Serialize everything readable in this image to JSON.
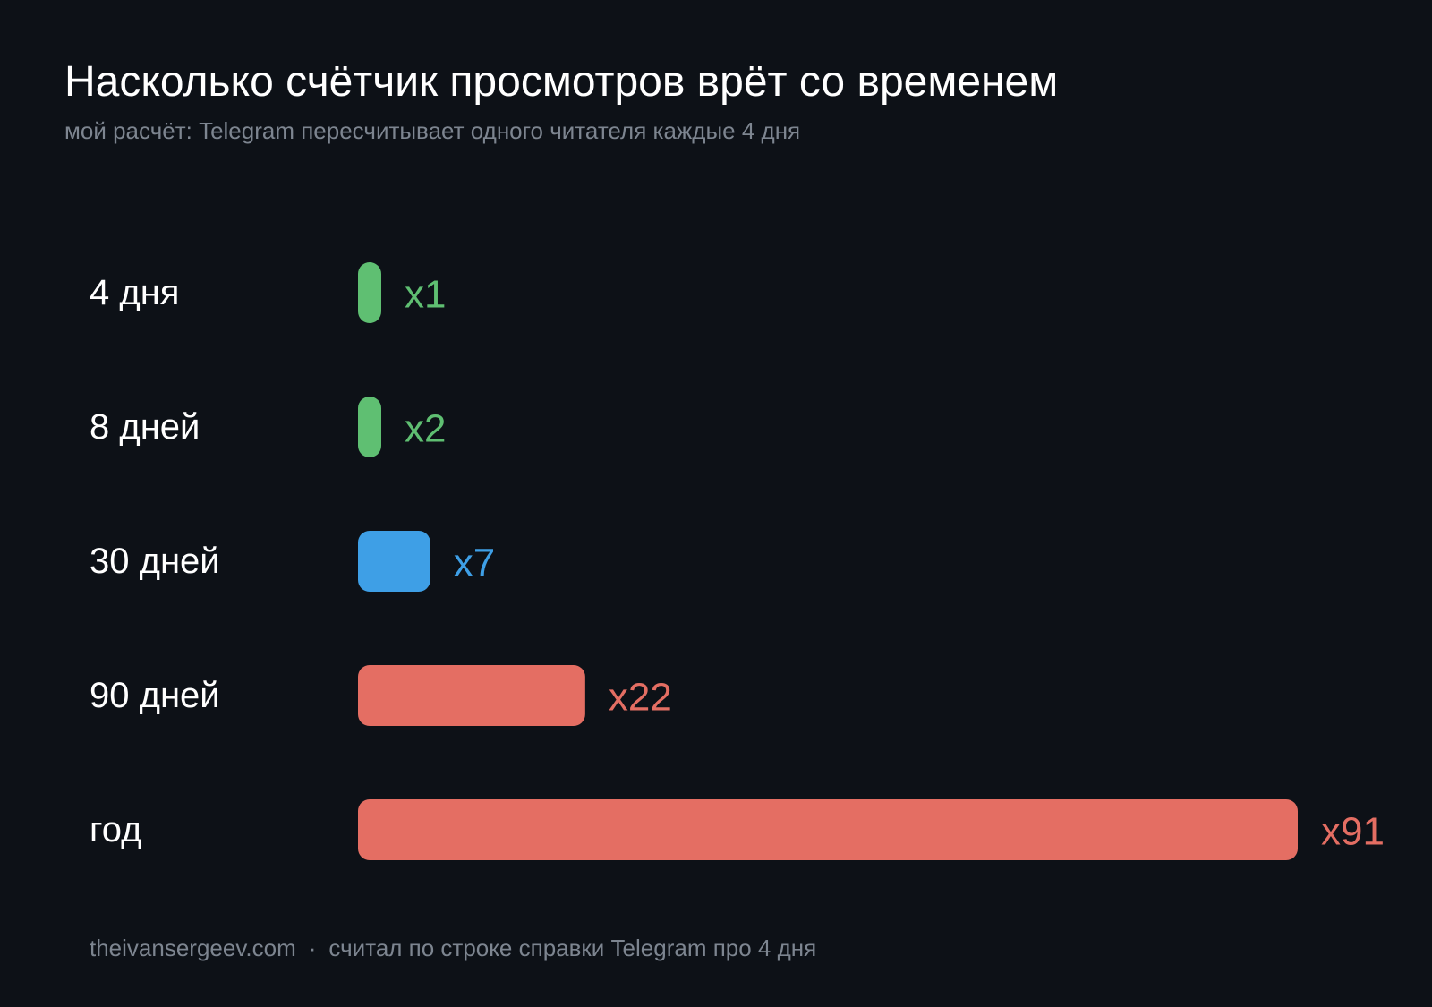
{
  "title": "Насколько счётчик просмотров врёт со временем",
  "subtitle": "мой расчёт: Telegram пересчитывает одного читателя каждые 4 дня",
  "colors": {
    "background": "#0d1117",
    "green": "#5fbf72",
    "blue": "#3e9fe6",
    "red": "#e46e63",
    "muted": "#7d8590",
    "text": "#ffffff"
  },
  "chart_data": {
    "type": "bar",
    "orientation": "horizontal",
    "categories": [
      "4 дня",
      "8 дней",
      "30 дней",
      "90 дней",
      "год"
    ],
    "values": [
      1,
      2,
      7,
      22,
      91
    ],
    "value_labels": [
      "x1",
      "x2",
      "x7",
      "x22",
      "x91"
    ],
    "bar_colors": [
      "#5fbf72",
      "#5fbf72",
      "#3e9fe6",
      "#e46e63",
      "#e46e63"
    ],
    "title": "Насколько счётчик просмотров врёт со временем",
    "subtitle": "мой расчёт: Telegram пересчитывает одного читателя каждые 4 дня",
    "xlabel": "",
    "ylabel": "",
    "xlim": [
      0,
      91
    ],
    "grid": false,
    "legend": "none"
  },
  "footer": {
    "site": "theivansergeev.com",
    "separator": "·",
    "note": "считал по строке справки Telegram про 4 дня"
  }
}
